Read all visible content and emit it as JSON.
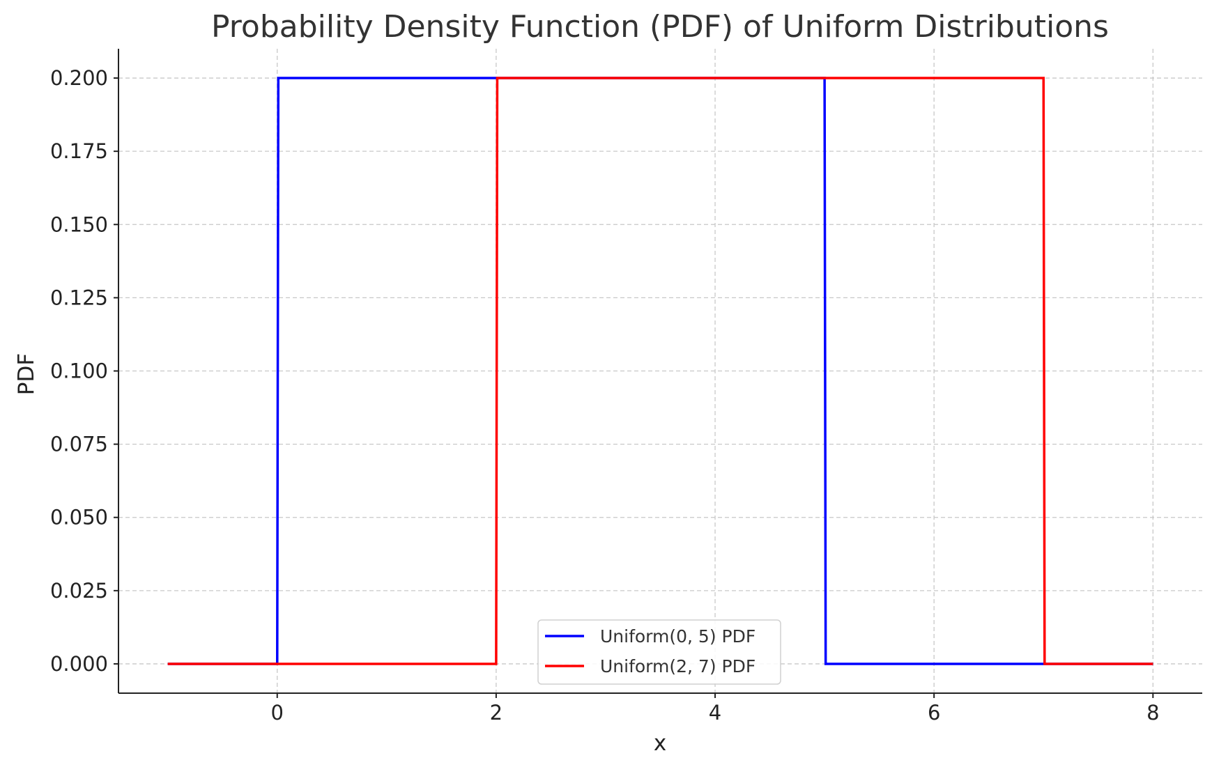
{
  "chart_data": {
    "type": "line",
    "title": "Probability Density Function (PDF) of Uniform Distributions",
    "xlabel": "x",
    "ylabel": "PDF",
    "xlim": [
      -1.45,
      8.45
    ],
    "ylim": [
      -0.01,
      0.21
    ],
    "xticks": [
      0,
      2,
      4,
      6,
      8
    ],
    "xtick_labels": [
      "0",
      "2",
      "4",
      "6",
      "8"
    ],
    "yticks": [
      0.0,
      0.025,
      0.05,
      0.075,
      0.1,
      0.125,
      0.15,
      0.175,
      0.2
    ],
    "ytick_labels": [
      "0.000",
      "0.025",
      "0.050",
      "0.075",
      "0.100",
      "0.125",
      "0.150",
      "0.175",
      "0.200"
    ],
    "grid": true,
    "legend_position": "bottom-center",
    "series": [
      {
        "name": "Uniform(0, 5) PDF",
        "color": "#0000ff",
        "x": [
          -1,
          0,
          0.01,
          5,
          5.01,
          8
        ],
        "y": [
          0,
          0,
          0.2,
          0.2,
          0,
          0
        ]
      },
      {
        "name": "Uniform(2, 7) PDF",
        "color": "#ff0000",
        "x": [
          -1,
          2,
          2.01,
          7,
          7.01,
          8
        ],
        "y": [
          0,
          0,
          0.2,
          0.2,
          0,
          0
        ]
      }
    ]
  }
}
